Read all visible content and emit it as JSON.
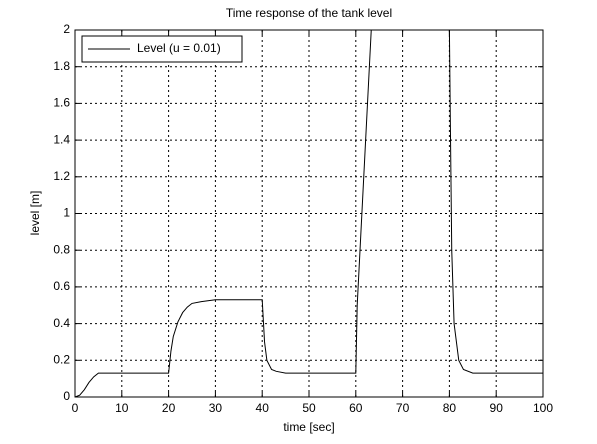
{
  "chart_data": {
    "type": "line",
    "title": "Time response of the tank level",
    "xlabel": "time [sec]",
    "ylabel": "level [m]",
    "x": [
      0,
      1,
      2,
      3,
      4,
      5,
      6,
      20,
      20.5,
      21,
      22,
      23,
      24,
      25,
      27,
      30,
      40,
      40.5,
      41,
      42,
      43,
      45,
      60,
      60.3,
      63.3,
      80,
      80.2,
      80.5,
      81,
      82,
      83,
      85,
      100
    ],
    "series": [
      {
        "name": "Level (u = 0.01)",
        "color": "#000000",
        "values": [
          0,
          0.01,
          0.04,
          0.08,
          0.11,
          0.13,
          0.13,
          0.13,
          0.25,
          0.33,
          0.41,
          0.46,
          0.49,
          0.51,
          0.52,
          0.53,
          0.53,
          0.3,
          0.2,
          0.15,
          0.14,
          0.13,
          0.13,
          0.5,
          2,
          2,
          1.5,
          0.8,
          0.4,
          0.2,
          0.15,
          0.13,
          0.13
        ]
      }
    ],
    "xlim": [
      0,
      100
    ],
    "xticks": [
      0,
      10,
      20,
      30,
      40,
      50,
      60,
      70,
      80,
      90,
      100
    ],
    "ylim": [
      0,
      2
    ],
    "yticks": [
      0,
      0.2,
      0.4,
      0.6,
      0.8,
      1,
      1.2,
      1.4,
      1.6,
      1.8,
      2
    ],
    "grid": true,
    "legend": "upper-left"
  }
}
